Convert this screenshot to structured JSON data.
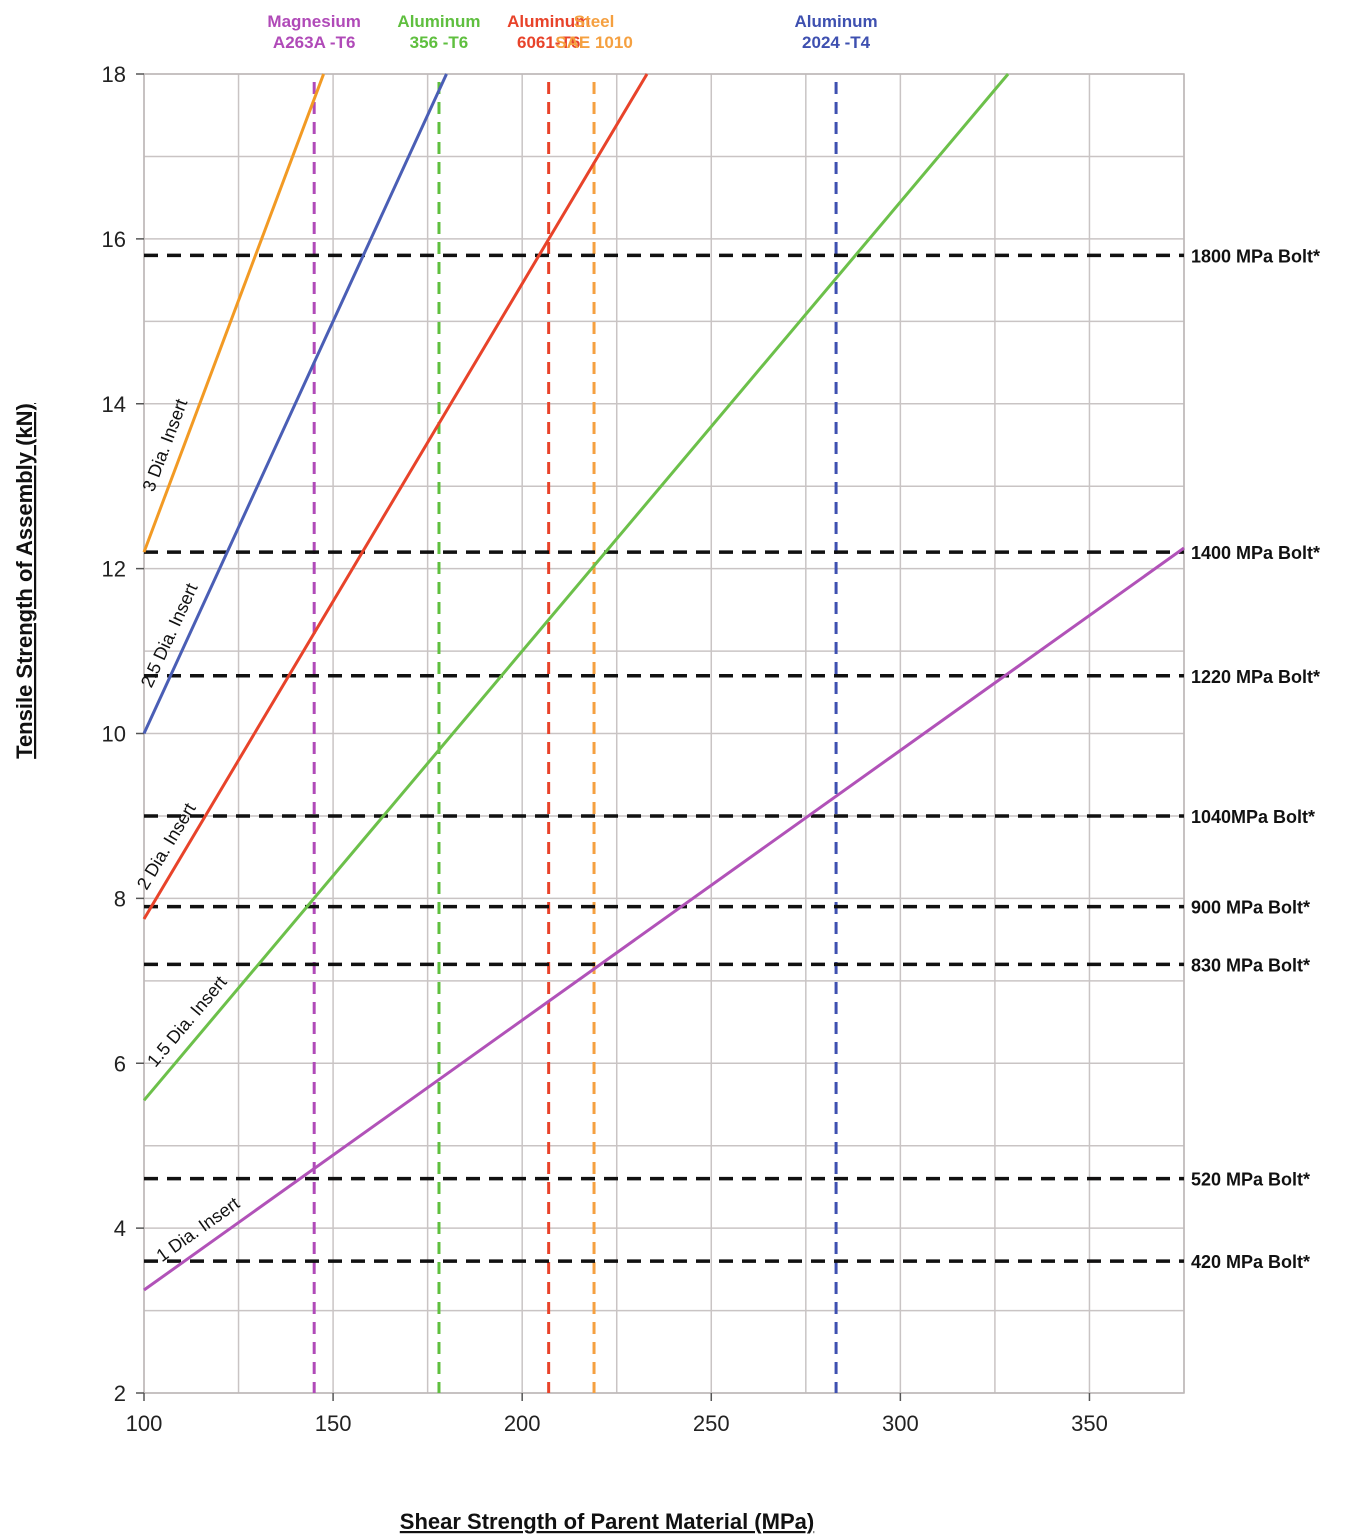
{
  "chart_data": {
    "type": "line",
    "title": "",
    "xlabel": "Shear Strength of Parent Material (MPa)",
    "ylabel": "Tensile Strength of Assembly (kN)",
    "xlim": [
      100,
      375
    ],
    "ylim": [
      2,
      18
    ],
    "x_ticks": [
      "100",
      "150",
      "200",
      "250",
      "300",
      "350"
    ],
    "y_ticks": [
      "2",
      "4",
      "6",
      "8",
      "10",
      "12",
      "14",
      "16",
      "18"
    ],
    "grid": true,
    "series": [
      {
        "name": "1 Dia. Insert",
        "color": "#b152b8",
        "x": [
          100,
          375
        ],
        "y": [
          3.25,
          12.25
        ]
      },
      {
        "name": "1.5 Dia. Insert",
        "color": "#6cc04a",
        "x": [
          100,
          328.5
        ],
        "y": [
          5.55,
          18
        ]
      },
      {
        "name": "2 Dia. Insert",
        "color": "#e8432a",
        "x": [
          100,
          233
        ],
        "y": [
          7.75,
          18
        ]
      },
      {
        "name": "2.5 Dia. Insert",
        "color": "#4a5eb5",
        "x": [
          100,
          180
        ],
        "y": [
          10,
          18
        ]
      },
      {
        "name": "3 Dia. Insert",
        "color": "#f29a24",
        "x": [
          100,
          147.5
        ],
        "y": [
          12.2,
          18
        ]
      }
    ],
    "materials": [
      {
        "line1": "Magnesium",
        "line2": "A263A -T6",
        "x": 145,
        "color": "#b04ab8"
      },
      {
        "line1": "Aluminum",
        "line2": "356 -T6",
        "x": 178,
        "color": "#5fbf3f"
      },
      {
        "line1": "Aluminum",
        "line2": "6061-T6",
        "x": 207,
        "color": "#e8432a"
      },
      {
        "line1": "Steel",
        "line2": "SAE 1010",
        "x": 219,
        "color": "#f5a040"
      },
      {
        "line1": "Aluminum",
        "line2": "2024 -T4",
        "x": 283,
        "color": "#3e50b0"
      }
    ],
    "bolts": [
      {
        "label": "1800 MPa Bolt*",
        "y": 15.8
      },
      {
        "label": "1400 MPa Bolt*",
        "y": 12.2
      },
      {
        "label": "1220 MPa Bolt*",
        "y": 10.7
      },
      {
        "label": "1040MPa Bolt*",
        "y": 9.0
      },
      {
        "label": "900 MPa Bolt*",
        "y": 7.9
      },
      {
        "label": "830 MPa Bolt*",
        "y": 7.2
      },
      {
        "label": "520 MPa Bolt*",
        "y": 4.6
      },
      {
        "label": "420 MPa Bolt*",
        "y": 3.6
      }
    ]
  }
}
